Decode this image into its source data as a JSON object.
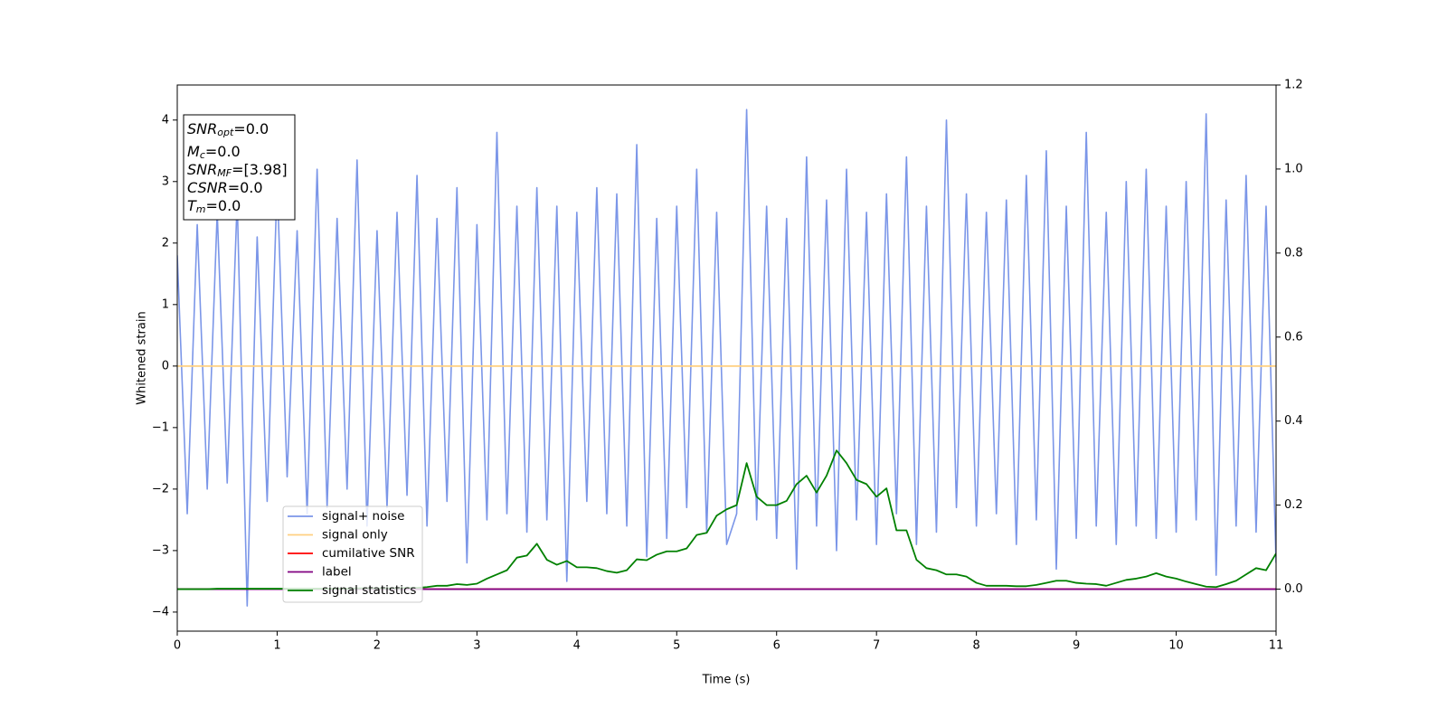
{
  "chart_data": {
    "type": "line",
    "xlabel": "Time (s)",
    "ylabel": "Whitened strain",
    "xlim": [
      0,
      11
    ],
    "ylim": [
      -4.31,
      4.57
    ],
    "y2lim": [
      -0.1,
      1.2
    ],
    "xticks": [
      0,
      1,
      2,
      3,
      4,
      5,
      6,
      7,
      8,
      9,
      10,
      11
    ],
    "yticks": [
      -4,
      -3,
      -2,
      -1,
      0,
      1,
      2,
      3,
      4
    ],
    "y2ticks": [
      {
        "value": 0,
        "label": "0.0"
      },
      {
        "value": 0.2,
        "label": "0.2"
      },
      {
        "value": 0.4,
        "label": "0.4"
      },
      {
        "value": 0.6,
        "label": "0.6"
      },
      {
        "value": 0.8,
        "label": "0.8"
      },
      {
        "value": 1.0,
        "label": "1.0"
      },
      {
        "value": 1.2,
        "label": "1.2"
      }
    ],
    "legend": "lower left",
    "annotation": [
      {
        "base": "SNR",
        "sub": "opt",
        "text": "=0.0"
      },
      {
        "base": "M",
        "sub": "c",
        "text": "=0.0"
      },
      {
        "base": "SNR",
        "sub": "MF",
        "text": "=[3.98]"
      },
      {
        "base": "CSNR",
        "text": "=0.0"
      },
      {
        "base": "T",
        "sub": "m",
        "text": "=0.0"
      }
    ],
    "x": [
      0,
      0.1,
      0.2,
      0.3,
      0.4,
      0.5,
      0.6,
      0.7,
      0.8,
      0.9,
      1,
      1.1,
      1.2,
      1.3,
      1.4,
      1.5,
      1.6,
      1.7,
      1.8,
      1.9,
      2,
      2.1,
      2.2,
      2.3,
      2.4,
      2.5,
      2.6,
      2.7,
      2.8,
      2.9,
      3,
      3.1,
      3.2,
      3.3,
      3.4,
      3.5,
      3.6,
      3.7,
      3.8,
      3.9,
      4,
      4.1,
      4.2,
      4.3,
      4.4,
      4.5,
      4.6,
      4.7,
      4.8,
      4.9,
      5,
      5.1,
      5.2,
      5.3,
      5.4,
      5.5,
      5.6,
      5.7,
      5.8,
      5.9,
      6,
      6.1,
      6.2,
      6.3,
      6.4,
      6.5,
      6.6,
      6.7,
      6.8,
      6.9,
      7,
      7.1,
      7.2,
      7.3,
      7.4,
      7.5,
      7.6,
      7.7,
      7.8,
      7.9,
      8,
      8.1,
      8.2,
      8.3,
      8.4,
      8.5,
      8.6,
      8.7,
      8.8,
      8.9,
      9,
      9.1,
      9.2,
      9.3,
      9.4,
      9.5,
      9.6,
      9.7,
      9.8,
      9.9,
      10,
      10.1,
      10.2,
      10.3,
      10.4,
      10.5,
      10.6,
      10.7,
      10.8,
      10.9,
      11
    ],
    "series": [
      {
        "name": "signal+ noise",
        "color": "#7b96e8",
        "values": [
          1.8,
          -2.4,
          2.3,
          -2.0,
          2.5,
          -1.9,
          2.7,
          -3.9,
          2.1,
          -2.2,
          3.0,
          -1.8,
          2.2,
          -2.4,
          3.2,
          -2.3,
          2.4,
          -2.0,
          3.35,
          -2.6,
          2.2,
          -2.3,
          2.5,
          -2.1,
          3.1,
          -2.6,
          2.4,
          -2.2,
          2.9,
          -3.2,
          2.3,
          -2.5,
          3.8,
          -2.4,
          2.6,
          -2.7,
          2.9,
          -2.5,
          2.6,
          -3.5,
          2.5,
          -2.2,
          2.9,
          -2.4,
          2.8,
          -2.6,
          3.6,
          -3.1,
          2.4,
          -2.8,
          2.6,
          -2.3,
          3.2,
          -2.7,
          2.5,
          -2.9,
          -2.4,
          4.17,
          -2.5,
          2.6,
          -2.8,
          2.4,
          -3.3,
          3.4,
          -2.6,
          2.7,
          -3.0,
          3.2,
          -2.5,
          2.5,
          -2.9,
          2.8,
          -2.4,
          3.4,
          -2.9,
          2.6,
          -2.7,
          4.0,
          -2.3,
          2.8,
          -2.6,
          2.5,
          -2.4,
          2.7,
          -2.9,
          3.1,
          -2.5,
          3.5,
          -3.3,
          2.6,
          -2.8,
          3.8,
          -2.6,
          2.5,
          -2.9,
          3.0,
          -2.6,
          3.2,
          -2.8,
          2.6,
          -2.7,
          3.0,
          -2.5,
          4.1,
          -3.4,
          2.7,
          -2.6,
          3.1,
          -2.7,
          2.6,
          -3.2
        ]
      },
      {
        "name": "signal only",
        "color": "#ffd080",
        "x": [
          0,
          11
        ],
        "values": [
          0,
          0
        ]
      },
      {
        "name": "cumilative SNR",
        "color": "#ff0000",
        "axis": "y2",
        "x": [
          0,
          11
        ],
        "values": [
          0,
          0
        ]
      },
      {
        "name": "label",
        "color": "#800080",
        "axis": "y2",
        "x": [
          0,
          11
        ],
        "values": [
          0,
          0
        ]
      },
      {
        "name": "signal statistics",
        "color": "#008000",
        "axis": "y2",
        "values": [
          0,
          0,
          0,
          0,
          0.001,
          0.001,
          0.001,
          0.001,
          0.001,
          0.001,
          0.001,
          0.001,
          0.001,
          0.001,
          0.001,
          0.001,
          0.001,
          0.001,
          0.002,
          0.002,
          0.002,
          0.002,
          0.002,
          0.003,
          0.003,
          0.005,
          0.008,
          0.008,
          0.012,
          0.01,
          0.013,
          0.025,
          0.035,
          0.045,
          0.075,
          0.08,
          0.108,
          0.07,
          0.058,
          0.067,
          0.052,
          0.052,
          0.05,
          0.043,
          0.039,
          0.045,
          0.071,
          0.069,
          0.082,
          0.09,
          0.09,
          0.097,
          0.129,
          0.134,
          0.175,
          0.19,
          0.2,
          0.3,
          0.22,
          0.2,
          0.2,
          0.21,
          0.25,
          0.27,
          0.23,
          0.27,
          0.33,
          0.3,
          0.26,
          0.25,
          0.22,
          0.24,
          0.14,
          0.14,
          0.07,
          0.05,
          0.045,
          0.035,
          0.035,
          0.03,
          0.015,
          0.008,
          0.008,
          0.008,
          0.007,
          0.007,
          0.01,
          0.015,
          0.02,
          0.02,
          0.015,
          0.013,
          0.012,
          0.008,
          0.015,
          0.022,
          0.025,
          0.03,
          0.038,
          0.03,
          0.025,
          0.018,
          0.012,
          0.006,
          0.005,
          0.012,
          0.02,
          0.035,
          0.05,
          0.045,
          0.085
        ]
      }
    ]
  }
}
